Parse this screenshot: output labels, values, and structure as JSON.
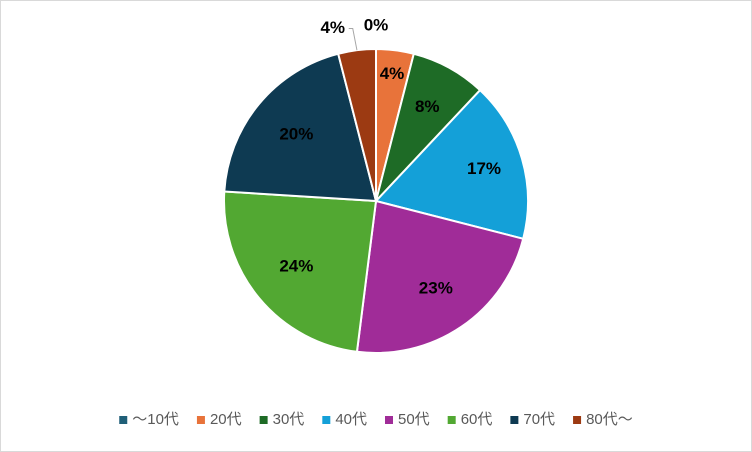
{
  "chart_data": {
    "type": "pie",
    "categories": [
      "～10代",
      "20代",
      "30代",
      "40代",
      "50代",
      "60代",
      "70代",
      "80代～"
    ],
    "values": [
      0,
      4,
      8,
      17,
      23,
      24,
      20,
      4
    ],
    "value_labels": [
      "0%",
      "4%",
      "8%",
      "17%",
      "23%",
      "24%",
      "20%",
      "4%"
    ],
    "colors": [
      "#1f5f78",
      "#e8733a",
      "#1e6b26",
      "#14a0d8",
      "#a02c98",
      "#52a832",
      "#0e3a52",
      "#9c3a12"
    ],
    "legend": "bottom"
  }
}
